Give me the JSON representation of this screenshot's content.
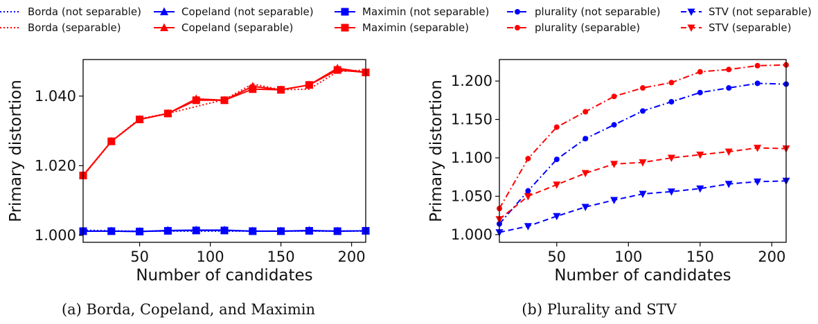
{
  "legend": {
    "entries": [
      {
        "label": "Borda (not separable)",
        "color": "#0000ff",
        "linestyle": "dotted",
        "marker": "none"
      },
      {
        "label": "Borda (separable)",
        "color": "#ff0000",
        "linestyle": "dotted",
        "marker": "none"
      },
      {
        "label": "Copeland (not separable)",
        "color": "#0000ff",
        "linestyle": "solid",
        "marker": "triangle-up"
      },
      {
        "label": "Copeland (separable)",
        "color": "#ff0000",
        "linestyle": "solid",
        "marker": "triangle-up"
      },
      {
        "label": "Maximin (not separable)",
        "color": "#0000ff",
        "linestyle": "solid",
        "marker": "square"
      },
      {
        "label": "Maximin (separable)",
        "color": "#ff0000",
        "linestyle": "solid",
        "marker": "square"
      },
      {
        "label": "plurality (not separable)",
        "color": "#0000ff",
        "linestyle": "dashdot",
        "marker": "circle"
      },
      {
        "label": "plurality (separable)",
        "color": "#ff0000",
        "linestyle": "dashdot",
        "marker": "circle"
      },
      {
        "label": "STV (not separable)",
        "color": "#0000ff",
        "linestyle": "dashed",
        "marker": "triangle-down"
      },
      {
        "label": "STV (separable)",
        "color": "#ff0000",
        "linestyle": "dashed",
        "marker": "triangle-down"
      }
    ]
  },
  "chart_data": [
    {
      "type": "line",
      "caption": "(a) Borda, Copeland, and Maximin",
      "xlabel": "Number of candidates",
      "ylabel": "Primary distortion",
      "xlim": [
        10,
        210
      ],
      "ylim": [
        0.998,
        1.0505
      ],
      "xticks": [
        50,
        100,
        150,
        200
      ],
      "yticks": [
        1.0,
        1.02,
        1.04
      ],
      "ytick_labels": [
        "1.000",
        "1.020",
        "1.040"
      ],
      "x": [
        10,
        30,
        50,
        70,
        90,
        110,
        130,
        150,
        170,
        190,
        210
      ],
      "series": [
        {
          "name": "Borda (not separable)",
          "color": "#0000ff",
          "linestyle": "dotted",
          "marker": "none",
          "values": [
            1.0015,
            1.0013,
            1.0012,
            1.0012,
            1.0012,
            1.0012,
            1.0012,
            1.0012,
            1.0012,
            1.0012,
            1.0012
          ]
        },
        {
          "name": "Borda (separable)",
          "color": "#ff0000",
          "linestyle": "dotted",
          "marker": "none",
          "values": [
            1.017,
            1.027,
            1.0335,
            1.035,
            1.037,
            1.039,
            1.0435,
            1.0418,
            1.042,
            1.047,
            1.0475
          ]
        },
        {
          "name": "Copeland (not separable)",
          "color": "#0000ff",
          "linestyle": "solid",
          "marker": "triangle-up",
          "values": [
            1.0012,
            1.0012,
            1.0011,
            1.0014,
            1.0015,
            1.0015,
            1.0012,
            1.0012,
            1.0014,
            1.0012,
            1.0013
          ]
        },
        {
          "name": "Copeland (separable)",
          "color": "#ff0000",
          "linestyle": "solid",
          "marker": "triangle-up",
          "values": [
            1.0172,
            1.027,
            1.0333,
            1.035,
            1.0392,
            1.0388,
            1.0428,
            1.0418,
            1.0432,
            1.048,
            1.0468
          ]
        },
        {
          "name": "Maximin (not separable)",
          "color": "#0000ff",
          "linestyle": "solid",
          "marker": "square",
          "values": [
            1.0012,
            1.0012,
            1.0011,
            1.0013,
            1.0014,
            1.0014,
            1.0012,
            1.0012,
            1.0013,
            1.0012,
            1.0013
          ]
        },
        {
          "name": "Maximin (separable)",
          "color": "#ff0000",
          "linestyle": "solid",
          "marker": "square",
          "values": [
            1.0172,
            1.027,
            1.0333,
            1.035,
            1.0388,
            1.0388,
            1.042,
            1.0418,
            1.0432,
            1.0475,
            1.0468
          ]
        }
      ]
    },
    {
      "type": "line",
      "caption": "(b) Plurality and STV",
      "xlabel": "Number of candidates",
      "ylabel": "Primary distortion",
      "xlim": [
        10,
        210
      ],
      "ylim": [
        0.99,
        1.228
      ],
      "xticks": [
        50,
        100,
        150,
        200
      ],
      "yticks": [
        1.0,
        1.05,
        1.1,
        1.15,
        1.2
      ],
      "ytick_labels": [
        "1.000",
        "1.050",
        "1.100",
        "1.150",
        "1.200"
      ],
      "x": [
        10,
        30,
        50,
        70,
        90,
        110,
        130,
        150,
        170,
        190,
        210
      ],
      "series": [
        {
          "name": "plurality (not separable)",
          "color": "#0000ff",
          "linestyle": "dashdot",
          "marker": "circle",
          "values": [
            1.014,
            1.057,
            1.098,
            1.125,
            1.143,
            1.161,
            1.173,
            1.185,
            1.191,
            1.197,
            1.196
          ]
        },
        {
          "name": "plurality (separable)",
          "color": "#ff0000",
          "linestyle": "dashdot",
          "marker": "circle",
          "values": [
            1.034,
            1.099,
            1.14,
            1.16,
            1.18,
            1.191,
            1.198,
            1.212,
            1.215,
            1.22,
            1.221
          ]
        },
        {
          "name": "STV (not separable)",
          "color": "#0000ff",
          "linestyle": "dashed",
          "marker": "triangle-down",
          "values": [
            1.003,
            1.011,
            1.024,
            1.036,
            1.045,
            1.053,
            1.056,
            1.06,
            1.066,
            1.069,
            1.07
          ]
        },
        {
          "name": "STV (separable)",
          "color": "#ff0000",
          "linestyle": "dashed",
          "marker": "triangle-down",
          "values": [
            1.02,
            1.05,
            1.065,
            1.08,
            1.092,
            1.094,
            1.1,
            1.104,
            1.108,
            1.113,
            1.112
          ]
        }
      ]
    }
  ]
}
